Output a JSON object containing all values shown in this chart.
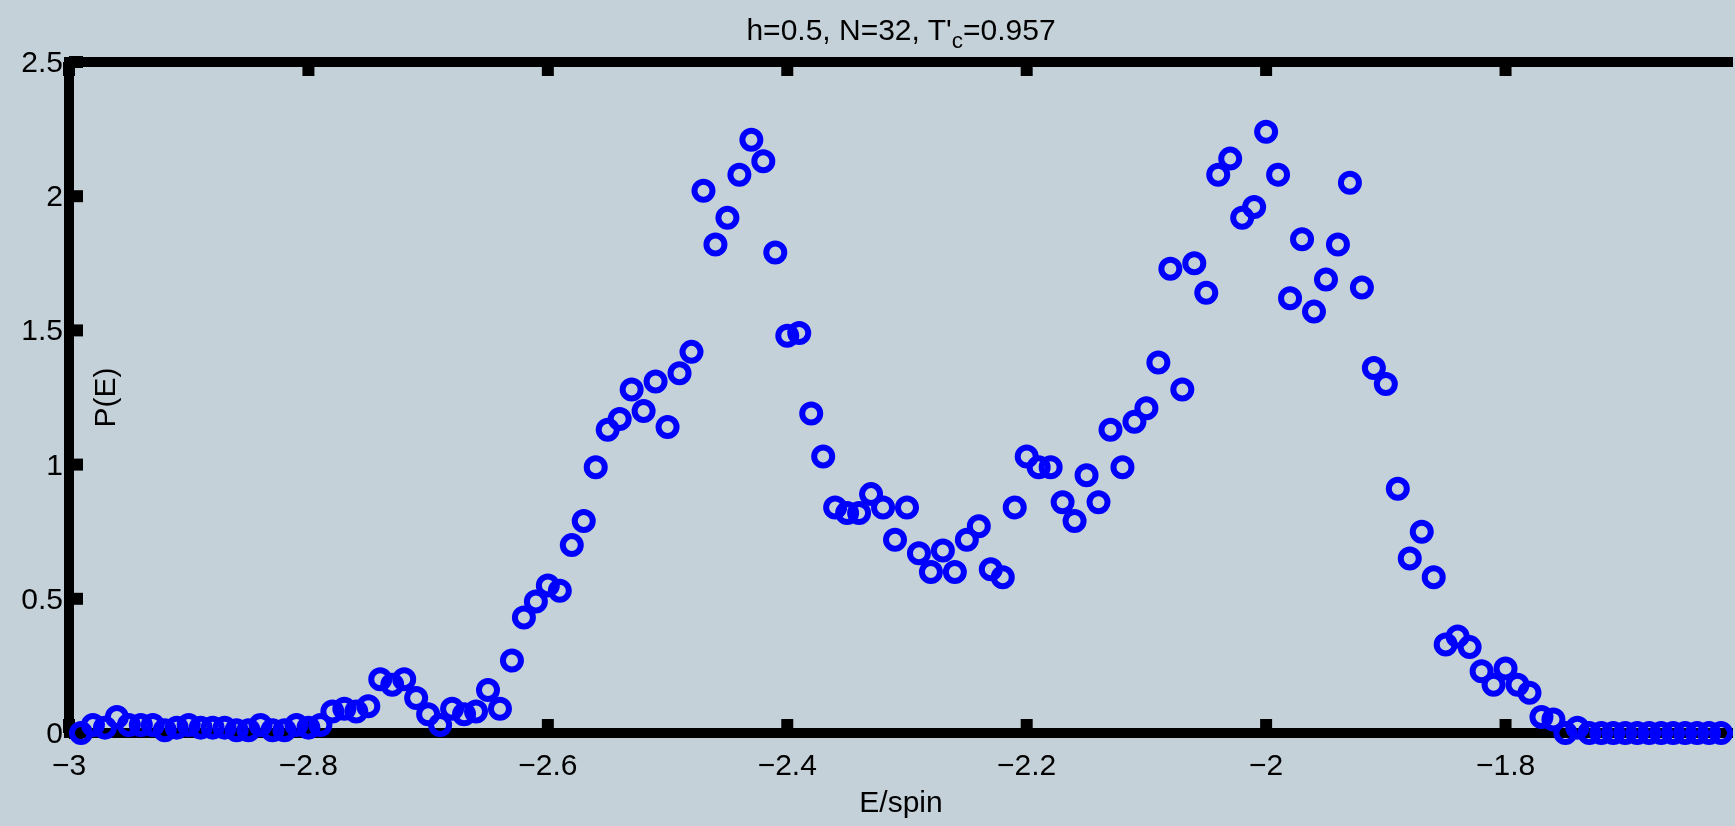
{
  "chart_data": {
    "type": "scatter",
    "title": "h=0.5, N=32, T'$_{c}$=0.957",
    "xlabel": "E/spin",
    "ylabel": "P(E)",
    "xlim": [
      -3,
      -1.61
    ],
    "xticks": [
      -3,
      -2.8,
      -2.6,
      -2.4,
      -2.2,
      -2,
      -1.8
    ],
    "ylim": [
      0,
      2.5
    ],
    "yticks": [
      0,
      0.5,
      1,
      1.5,
      2,
      2.5
    ],
    "grid": false,
    "marker": "circle",
    "series": [
      {
        "color": "#0000ff",
        "x": [
          -2.99,
          -2.98,
          -2.97,
          -2.96,
          -2.95,
          -2.94,
          -2.93,
          -2.92,
          -2.91,
          -2.9,
          -2.89,
          -2.88,
          -2.87,
          -2.86,
          -2.85,
          -2.84,
          -2.83,
          -2.82,
          -2.81,
          -2.8,
          -2.79,
          -2.78,
          -2.77,
          -2.76,
          -2.75,
          -2.74,
          -2.73,
          -2.72,
          -2.71,
          -2.7,
          -2.69,
          -2.68,
          -2.67,
          -2.66,
          -2.65,
          -2.64,
          -2.63,
          -2.62,
          -2.61,
          -2.6,
          -2.59,
          -2.58,
          -2.57,
          -2.56,
          -2.55,
          -2.54,
          -2.53,
          -2.52,
          -2.51,
          -2.5,
          -2.49,
          -2.48,
          -2.47,
          -2.46,
          -2.45,
          -2.44,
          -2.43,
          -2.42,
          -2.41,
          -2.4,
          -2.39,
          -2.38,
          -2.37,
          -2.36,
          -2.35,
          -2.34,
          -2.33,
          -2.32,
          -2.31,
          -2.3,
          -2.29,
          -2.28,
          -2.27,
          -2.26,
          -2.25,
          -2.24,
          -2.23,
          -2.22,
          -2.21,
          -2.2,
          -2.19,
          -2.18,
          -2.17,
          -2.16,
          -2.15,
          -2.14,
          -2.13,
          -2.12,
          -2.11,
          -2.1,
          -2.09,
          -2.08,
          -2.07,
          -2.06,
          -2.05,
          -2.04,
          -2.03,
          -2.02,
          -2.01,
          -2,
          -1.99,
          -1.98,
          -1.97,
          -1.96,
          -1.95,
          -1.94,
          -1.93,
          -1.92,
          -1.91,
          -1.9,
          -1.89,
          -1.88,
          -1.87,
          -1.86,
          -1.85,
          -1.84,
          -1.83,
          -1.82,
          -1.81,
          -1.8,
          -1.79,
          -1.78,
          -1.77,
          -1.76,
          -1.75,
          -1.74,
          -1.73,
          -1.72,
          -1.71,
          -1.7,
          -1.69,
          -1.68,
          -1.67,
          -1.66,
          -1.65,
          -1.64,
          -1.63,
          -1.62
        ],
        "values": [
          0,
          0.03,
          0.02,
          0.06,
          0.03,
          0.03,
          0.03,
          0.01,
          0.02,
          0.03,
          0.02,
          0.02,
          0.02,
          0.01,
          0.01,
          0.03,
          0.01,
          0.01,
          0.03,
          0.02,
          0.03,
          0.08,
          0.09,
          0.08,
          0.1,
          0.2,
          0.18,
          0.2,
          0.13,
          0.07,
          0.03,
          0.09,
          0.07,
          0.08,
          0.16,
          0.09,
          0.27,
          0.43,
          0.49,
          0.55,
          0.53,
          0.7,
          0.79,
          0.99,
          1.13,
          1.17,
          1.28,
          1.2,
          1.31,
          1.14,
          1.34,
          1.42,
          2.02,
          1.82,
          1.92,
          2.08,
          2.21,
          2.13,
          1.79,
          1.48,
          1.49,
          1.19,
          1.03,
          0.84,
          0.82,
          0.82,
          0.89,
          0.84,
          0.72,
          0.84,
          0.67,
          0.6,
          0.68,
          0.6,
          0.72,
          0.77,
          0.61,
          0.58,
          0.84,
          1.03,
          0.99,
          0.99,
          0.86,
          0.79,
          0.96,
          0.86,
          1.13,
          0.99,
          1.16,
          1.21,
          1.38,
          1.73,
          1.28,
          1.75,
          1.64,
          2.08,
          2.14,
          1.92,
          1.96,
          2.24,
          2.08,
          1.62,
          1.84,
          1.57,
          1.69,
          1.82,
          2.05,
          1.66,
          1.36,
          1.3,
          0.91,
          0.65,
          0.75,
          0.58,
          0.33,
          0.36,
          0.32,
          0.23,
          0.18,
          0.24,
          0.18,
          0.15,
          0.06,
          0.05,
          0,
          0.02,
          0,
          0,
          0,
          0,
          0,
          0,
          0,
          0,
          0,
          0,
          0,
          0
        ]
      }
    ]
  }
}
